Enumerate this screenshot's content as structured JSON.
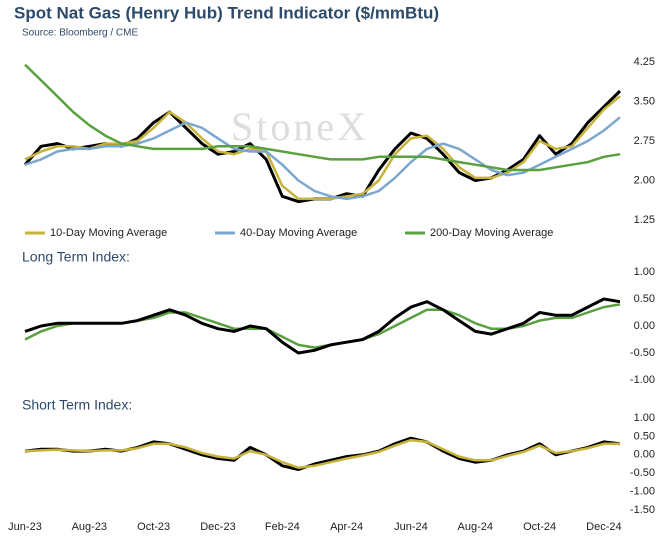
{
  "title": "Spot Nat Gas (Henry Hub) Trend Indicator ($/mmBtu)",
  "subtitle": "Source: Bloomberg / CME",
  "chart_data": [
    {
      "type": "line",
      "watermark": "StoneX",
      "ylim": [
        1.25,
        4.25
      ],
      "yticks": [
        {
          "value": 1.25,
          "label": "1.25"
        },
        {
          "value": 2,
          "label": "2.00"
        },
        {
          "value": 2.75,
          "label": "2.75"
        },
        {
          "value": 3.5,
          "label": "3.50"
        },
        {
          "value": 4.25,
          "label": "4.25"
        }
      ],
      "series": [
        {
          "color": "#000000",
          "values": [
            2.3,
            2.65,
            2.7,
            2.6,
            2.65,
            2.7,
            2.65,
            2.8,
            3.1,
            3.3,
            3.0,
            2.7,
            2.5,
            2.55,
            2.7,
            2.4,
            1.7,
            1.6,
            1.65,
            1.65,
            1.75,
            1.7,
            2.2,
            2.6,
            2.9,
            2.8,
            2.5,
            2.15,
            2.0,
            2.05,
            2.2,
            2.4,
            2.85,
            2.5,
            2.7,
            3.1,
            3.4,
            3.7
          ]
        },
        {
          "name": "10-Day Moving Average",
          "color": "#c8b33a",
          "values": [
            2.4,
            2.55,
            2.65,
            2.65,
            2.6,
            2.7,
            2.7,
            2.75,
            3.0,
            3.3,
            3.1,
            2.8,
            2.55,
            2.5,
            2.6,
            2.55,
            1.9,
            1.65,
            1.65,
            1.65,
            1.7,
            1.75,
            2.0,
            2.5,
            2.8,
            2.85,
            2.6,
            2.25,
            2.05,
            2.05,
            2.15,
            2.35,
            2.75,
            2.6,
            2.65,
            3.0,
            3.35,
            3.6
          ]
        },
        {
          "name": "40-Day Moving Average",
          "color": "#7ba7cf",
          "values": [
            2.3,
            2.4,
            2.55,
            2.6,
            2.6,
            2.65,
            2.65,
            2.7,
            2.8,
            2.95,
            3.1,
            3.0,
            2.8,
            2.6,
            2.55,
            2.55,
            2.3,
            2.0,
            1.8,
            1.7,
            1.65,
            1.7,
            1.8,
            2.05,
            2.35,
            2.6,
            2.7,
            2.6,
            2.4,
            2.2,
            2.1,
            2.15,
            2.3,
            2.45,
            2.6,
            2.75,
            2.95,
            3.2
          ]
        },
        {
          "name": "200-Day Moving Average",
          "color": "#5aa040",
          "values": [
            4.2,
            3.9,
            3.6,
            3.3,
            3.05,
            2.85,
            2.7,
            2.65,
            2.6,
            2.6,
            2.6,
            2.6,
            2.65,
            2.65,
            2.65,
            2.6,
            2.55,
            2.5,
            2.45,
            2.4,
            2.4,
            2.4,
            2.45,
            2.45,
            2.45,
            2.45,
            2.4,
            2.35,
            2.3,
            2.25,
            2.2,
            2.2,
            2.2,
            2.25,
            2.3,
            2.35,
            2.45,
            2.5
          ]
        }
      ]
    },
    {
      "type": "line",
      "title": "Long Term Index:",
      "ylim": [
        -1,
        1
      ],
      "yticks": [
        {
          "value": -1,
          "label": "-1.00"
        },
        {
          "value": -0.5,
          "label": "-0.50"
        },
        {
          "value": 0,
          "label": "0.00"
        },
        {
          "value": 0.5,
          "label": "0.50"
        },
        {
          "value": 1,
          "label": "1.00"
        }
      ],
      "series": [
        {
          "color": "#5aa040",
          "values": [
            -0.25,
            -0.1,
            0.0,
            0.05,
            0.05,
            0.05,
            0.05,
            0.1,
            0.15,
            0.25,
            0.25,
            0.15,
            0.05,
            -0.05,
            -0.05,
            -0.05,
            -0.2,
            -0.35,
            -0.4,
            -0.35,
            -0.3,
            -0.25,
            -0.15,
            0.0,
            0.15,
            0.3,
            0.3,
            0.2,
            0.05,
            -0.05,
            -0.05,
            0.0,
            0.1,
            0.15,
            0.15,
            0.25,
            0.35,
            0.4
          ]
        },
        {
          "color": "#000000",
          "values": [
            -0.1,
            0.0,
            0.05,
            0.05,
            0.05,
            0.05,
            0.05,
            0.1,
            0.2,
            0.3,
            0.2,
            0.05,
            -0.05,
            -0.1,
            0.0,
            -0.05,
            -0.3,
            -0.5,
            -0.45,
            -0.35,
            -0.3,
            -0.25,
            -0.1,
            0.15,
            0.35,
            0.45,
            0.3,
            0.1,
            -0.1,
            -0.15,
            -0.05,
            0.05,
            0.25,
            0.2,
            0.2,
            0.35,
            0.5,
            0.45
          ]
        }
      ]
    },
    {
      "type": "line",
      "title": "Short Term Index:",
      "ylim": [
        -1.5,
        1
      ],
      "yticks": [
        {
          "value": -1.5,
          "label": "-1.50"
        },
        {
          "value": -1,
          "label": "-1.00"
        },
        {
          "value": -0.5,
          "label": "-0.50"
        },
        {
          "value": 0,
          "label": "0.00"
        },
        {
          "value": 0.5,
          "label": "0.50"
        },
        {
          "value": 1,
          "label": "1.00"
        }
      ],
      "categories": [
        "Jun-23",
        null,
        null,
        null,
        "Aug-23",
        null,
        null,
        null,
        "Oct-23",
        null,
        null,
        null,
        "Dec-23",
        null,
        null,
        null,
        "Feb-24",
        null,
        null,
        null,
        "Apr-24",
        null,
        null,
        null,
        "Jun-24",
        null,
        null,
        null,
        "Aug-24",
        null,
        null,
        null,
        "Oct-24",
        null,
        null,
        null,
        "Dec-24",
        null
      ],
      "series": [
        {
          "color": "#000000",
          "values": [
            0.1,
            0.15,
            0.15,
            0.1,
            0.1,
            0.15,
            0.1,
            0.2,
            0.35,
            0.3,
            0.15,
            0.0,
            -0.1,
            -0.15,
            0.2,
            0.0,
            -0.3,
            -0.4,
            -0.25,
            -0.15,
            -0.05,
            0.0,
            0.1,
            0.3,
            0.45,
            0.35,
            0.1,
            -0.1,
            -0.2,
            -0.15,
            0.0,
            0.1,
            0.3,
            0.0,
            0.1,
            0.2,
            0.35,
            0.3
          ]
        },
        {
          "color": "#c8b33a",
          "values": [
            0.1,
            0.12,
            0.14,
            0.12,
            0.1,
            0.12,
            0.12,
            0.18,
            0.3,
            0.3,
            0.2,
            0.05,
            -0.05,
            -0.1,
            0.1,
            0.0,
            -0.2,
            -0.35,
            -0.3,
            -0.2,
            -0.1,
            -0.02,
            0.08,
            0.25,
            0.4,
            0.35,
            0.15,
            -0.05,
            -0.15,
            -0.15,
            -0.03,
            0.08,
            0.25,
            0.05,
            0.1,
            0.18,
            0.3,
            0.3
          ]
        }
      ]
    }
  ]
}
